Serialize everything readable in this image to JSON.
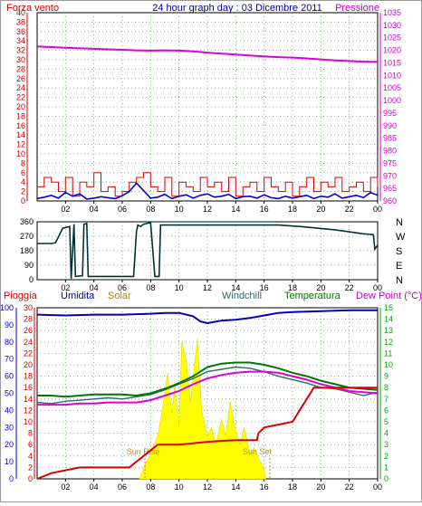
{
  "header": {
    "left_label": "Forza vento",
    "title": "24 hour graph day : 03 Dicembre 2011",
    "right_label": "Pressione"
  },
  "colors": {
    "wind": "#dd0000",
    "gust": "#0000dd",
    "pressure": "#dd00dd",
    "direction": "#003333",
    "rain": "#dd0000",
    "humidity": "#0000bb",
    "solar": "#ffff00",
    "windchill": "#336666",
    "temperature": "#007700",
    "dewpoint": "#dd00dd",
    "grid": "#66aa66",
    "axis_blue": "#0000cc",
    "axis_green": "#00aa00",
    "sun_marker": "#cc8800"
  },
  "chart_data": [
    {
      "type": "line",
      "name_hint": "wind-pressure",
      "x_ticks": [
        "02",
        "04",
        "06",
        "08",
        "10",
        "12",
        "14",
        "16",
        "18",
        "20",
        "22",
        "00"
      ],
      "y_left_ticks": [
        "0",
        "2",
        "4",
        "6",
        "8",
        "10",
        "12",
        "14",
        "16",
        "18",
        "20",
        "22",
        "24",
        "26",
        "28",
        "30",
        "32",
        "34",
        "36",
        "38",
        "40"
      ],
      "y_right_ticks": [
        "960",
        "965",
        "970",
        "975",
        "980",
        "985",
        "990",
        "995",
        "1000",
        "1005",
        "1010",
        "1015",
        "1020",
        "1025",
        "1030",
        "1035"
      ],
      "ylim_left": [
        0,
        40
      ],
      "ylim_right": [
        960,
        1035
      ],
      "grid": true,
      "series": [
        {
          "key": "pressure",
          "axis": "right",
          "x": [
            0,
            1,
            2,
            3,
            4,
            5,
            6,
            7,
            8,
            9,
            10,
            11,
            12,
            13,
            14,
            15,
            16,
            17,
            18,
            19,
            20,
            21,
            22,
            23,
            24
          ],
          "values": [
            1021.5,
            1021.3,
            1021.0,
            1020.8,
            1020.6,
            1020.4,
            1020.2,
            1020.0,
            1019.9,
            1020.0,
            1019.9,
            1019.6,
            1019.1,
            1018.7,
            1018.3,
            1017.9,
            1017.6,
            1017.3,
            1017.1,
            1016.8,
            1016.4,
            1016.0,
            1015.7,
            1015.5,
            1015.4
          ]
        },
        {
          "key": "wind",
          "axis": "left",
          "x": [
            0,
            0.5,
            1,
            1.5,
            2,
            2.5,
            3,
            3.5,
            4,
            4.5,
            5,
            5.5,
            6,
            6.5,
            7,
            7.5,
            8,
            8.5,
            9,
            9.5,
            10,
            10.5,
            11,
            11.5,
            12,
            12.5,
            13,
            13.5,
            14,
            14.5,
            15,
            15.5,
            16,
            16.5,
            17,
            17.5,
            18,
            18.5,
            19,
            19.5,
            20,
            20.5,
            21,
            21.5,
            22,
            22.5,
            23,
            23.5,
            24
          ],
          "values": [
            3,
            5,
            4,
            2,
            5,
            1,
            4,
            3,
            6,
            2,
            3,
            1,
            2,
            4,
            5,
            6,
            3,
            2,
            5,
            1,
            4,
            3,
            2,
            5,
            3,
            4,
            2,
            5,
            1,
            3,
            4,
            2,
            5,
            3,
            2,
            4,
            1,
            3,
            5,
            2,
            4,
            3,
            5,
            2,
            3,
            4,
            2,
            5,
            3
          ]
        },
        {
          "key": "gust",
          "axis": "left",
          "x": [
            0,
            0.5,
            1,
            1.5,
            2,
            2.5,
            3,
            3.5,
            4,
            4.5,
            5,
            5.5,
            6,
            6.5,
            7,
            7.5,
            8,
            8.5,
            9,
            9.5,
            10,
            10.5,
            11,
            11.5,
            12,
            12.5,
            13,
            13.5,
            14,
            14.5,
            15,
            15.5,
            16,
            16.5,
            17,
            17.5,
            18,
            18.5,
            19,
            19.5,
            20,
            20.5,
            21,
            21.5,
            22,
            22.5,
            23,
            23.5,
            24
          ],
          "values": [
            0.5,
            0.8,
            1.2,
            0.6,
            1.8,
            1.0,
            1.5,
            0.4,
            0.6,
            0.9,
            0.7,
            0.5,
            1.1,
            2.0,
            3.8,
            2.2,
            0.6,
            0.8,
            1.4,
            0.5,
            1.0,
            1.3,
            0.6,
            1.2,
            1.5,
            0.8,
            1.0,
            1.4,
            0.5,
            0.9,
            1.0,
            0.6,
            1.3,
            0.7,
            0.5,
            1.0,
            0.6,
            0.9,
            1.2,
            0.5,
            1.0,
            0.8,
            1.5,
            0.6,
            0.9,
            1.2,
            0.7,
            1.8,
            1.2
          ]
        }
      ]
    },
    {
      "type": "line",
      "name_hint": "wind-direction",
      "x_ticks": [
        "02",
        "04",
        "06",
        "08",
        "10",
        "12",
        "14",
        "16",
        "18",
        "20",
        "22",
        "00"
      ],
      "y_left_ticks": [
        "0",
        "90",
        "180",
        "270",
        "360"
      ],
      "y_right_ticks": [
        "N",
        "E",
        "S",
        "W",
        "N"
      ],
      "ylim": [
        0,
        360
      ],
      "grid": true,
      "series": [
        {
          "key": "direction",
          "x": [
            0,
            1,
            1.3,
            1.8,
            2.3,
            2.4,
            2.6,
            2.7,
            3.2,
            3.3,
            3.5,
            3.6,
            4.2,
            5.5,
            6.8,
            7.0,
            7.1,
            7.3,
            7.5,
            8.0,
            8.3,
            8.6,
            8.7,
            9,
            12,
            15,
            17,
            18.6,
            21,
            23,
            23.7,
            23.8,
            24
          ],
          "values": [
            225,
            225,
            230,
            320,
            330,
            5,
            345,
            20,
            25,
            345,
            350,
            20,
            20,
            20,
            20,
            300,
            340,
            330,
            345,
            355,
            20,
            20,
            340,
            340,
            340,
            340,
            340,
            330,
            310,
            285,
            280,
            190,
            215
          ]
        }
      ]
    },
    {
      "type": "line",
      "name_hint": "rain-humidity-solar-temperature",
      "x_ticks": [
        "02",
        "04",
        "06",
        "08",
        "10",
        "12",
        "14",
        "16",
        "18",
        "20",
        "22",
        "00"
      ],
      "y_rain_ticks": [
        "0",
        "2",
        "4",
        "6",
        "8",
        "10",
        "12",
        "14",
        "16",
        "18",
        "20",
        "22",
        "24",
        "26",
        "28",
        "30"
      ],
      "y_humidity_ticks": [
        "0",
        "10",
        "20",
        "30",
        "40",
        "50",
        "60",
        "70",
        "80",
        "90",
        "100"
      ],
      "y_temp_ticks": [
        "0",
        "1",
        "2",
        "3",
        "4",
        "5",
        "6",
        "7",
        "8",
        "9",
        "10",
        "11",
        "12",
        "13",
        "14",
        "15"
      ],
      "ylim_rain": [
        0,
        30
      ],
      "ylim_humidity": [
        0,
        100
      ],
      "ylim_temp": [
        0,
        15
      ],
      "grid": true,
      "series": [
        {
          "key": "rain",
          "axis": "rain",
          "x": [
            0,
            1,
            3,
            6.5,
            7.5,
            8.5,
            10,
            12,
            14,
            15.5,
            15.6,
            16,
            18,
            19.5,
            20,
            24
          ],
          "values": [
            0,
            1,
            2,
            2,
            4,
            6,
            6,
            6.5,
            6.8,
            6.8,
            8,
            9,
            10,
            16,
            16,
            16
          ]
        },
        {
          "key": "humidity",
          "axis": "humidity",
          "x": [
            0,
            2,
            4,
            6,
            8,
            9,
            10,
            11,
            11.5,
            12,
            13,
            14,
            15,
            16,
            17,
            18,
            20,
            22,
            24
          ],
          "values": [
            96,
            95.5,
            96,
            96,
            96.5,
            97,
            97,
            95,
            92,
            91,
            92.5,
            93,
            94,
            95.5,
            97,
            97.5,
            98,
            98.5,
            98.5
          ]
        },
        {
          "key": "temperature",
          "axis": "temp",
          "x": [
            0,
            1,
            2,
            3,
            4,
            5,
            6,
            7,
            8,
            9,
            10,
            11,
            12,
            13,
            14,
            15,
            16,
            17,
            18,
            19,
            20,
            21,
            22,
            23,
            24
          ],
          "values": [
            7.3,
            7.3,
            7.2,
            7.3,
            7.4,
            7.4,
            7.4,
            7.3,
            7.5,
            7.9,
            8.4,
            9.0,
            9.8,
            10.1,
            10.2,
            10.2,
            10.0,
            9.7,
            9.3,
            9.0,
            8.6,
            8.3,
            8.0,
            7.9,
            7.8
          ]
        },
        {
          "key": "dewpoint",
          "axis": "temp",
          "x": [
            0,
            1,
            2,
            3,
            4,
            5,
            6,
            7,
            8,
            9,
            10,
            11,
            12,
            13,
            14,
            15,
            16,
            17,
            18,
            19,
            20,
            21,
            22,
            23,
            24
          ],
          "values": [
            6.5,
            6.5,
            6.5,
            6.6,
            6.6,
            6.7,
            6.7,
            6.7,
            6.9,
            7.3,
            7.7,
            8.3,
            8.8,
            9.1,
            9.3,
            9.4,
            9.4,
            9.3,
            9.0,
            8.7,
            8.3,
            8.0,
            7.7,
            7.6,
            7.5
          ]
        },
        {
          "key": "windchill",
          "axis": "temp",
          "x": [
            0,
            1,
            2,
            3,
            4,
            5,
            6,
            7,
            8,
            9,
            10,
            11,
            12,
            13,
            14,
            15,
            16,
            17,
            18,
            19,
            20,
            21,
            22,
            23,
            24
          ],
          "values": [
            6.7,
            6.6,
            6.8,
            6.9,
            7.0,
            7.1,
            7.0,
            7.2,
            7.4,
            7.8,
            8.3,
            8.8,
            9.4,
            9.6,
            9.8,
            9.7,
            9.4,
            9.0,
            8.7,
            8.4,
            8.0,
            7.9,
            7.6,
            7.3,
            7.6
          ]
        },
        {
          "key": "solar",
          "axis": "humidity",
          "x": [
            7.2,
            7.6,
            8,
            8.5,
            9,
            9.2,
            9.5,
            9.7,
            10,
            10.2,
            10.5,
            10.8,
            11,
            11.3,
            11.6,
            12,
            12.3,
            12.6,
            13,
            13.3,
            13.6,
            14,
            14.3,
            14.6,
            15,
            15.3,
            15.6,
            16,
            16.1
          ],
          "values": [
            0,
            8,
            15,
            25,
            50,
            62,
            38,
            55,
            30,
            80,
            70,
            45,
            60,
            82,
            40,
            25,
            30,
            20,
            35,
            25,
            45,
            28,
            20,
            30,
            15,
            18,
            12,
            6,
            0
          ]
        }
      ]
    }
  ],
  "panel_titles": {
    "rain": "Pioggia",
    "humidity": "Umidita",
    "solar": "Solar",
    "windchill": "Windchill",
    "temperature": "Temperatura",
    "dewpoint": "Dew Point (°C)"
  },
  "sun": {
    "rise_label": "Sun Rise",
    "set_label": "Sun Set",
    "rise_hour": 7.6,
    "set_hour": 16.4
  }
}
